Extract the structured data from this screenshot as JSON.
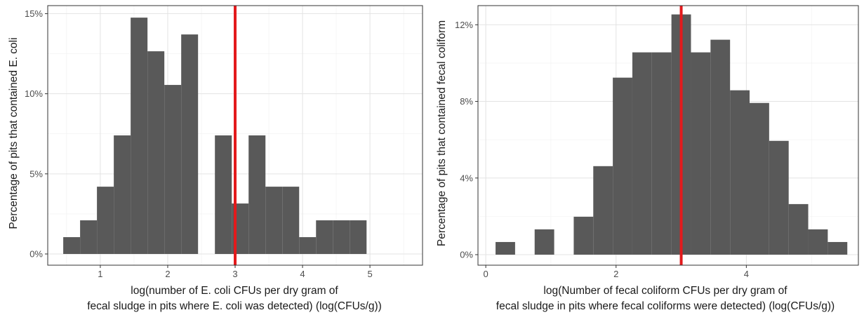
{
  "chart_data": [
    {
      "type": "bar",
      "subtype": "histogram",
      "ylabel": "Percentage of pits that contained E. coli",
      "xlabel_lines": [
        "log(number of E. coli CFUs per dry gram of",
        "fecal sludge in pits where E. coli was detected) (log(CFUs/g))"
      ],
      "bin_width": 0.25,
      "bin_start": 0.45,
      "values": [
        1.05,
        2.1,
        4.2,
        7.4,
        14.75,
        12.65,
        10.55,
        13.7,
        0.0,
        7.4,
        3.15,
        7.4,
        4.2,
        4.2,
        1.05,
        2.1,
        2.1,
        2.1
      ],
      "xlim": [
        0.22,
        5.78
      ],
      "ylim": [
        -0.7,
        15.5
      ],
      "xticks": [
        1,
        2,
        3,
        4,
        5
      ],
      "xtick_labels": [
        "1",
        "2",
        "3",
        "4",
        "5"
      ],
      "yticks": [
        0,
        5,
        10,
        15
      ],
      "ytick_labels": [
        "0%",
        "5%",
        "10%",
        "15%"
      ],
      "reference_line_x": 3.0,
      "reference_line_color": "#e31a1c",
      "bar_color": "#595959",
      "grid": true
    },
    {
      "type": "bar",
      "subtype": "histogram",
      "ylabel": "Percentage of pits that contained fecal coliform",
      "xlabel_lines": [
        "log(Number of fecal coliform CFUs per dry gram of",
        "fecal sludge in pits where fecal coliforms were detected) (log(CFUs/g))"
      ],
      "bin_width": 0.3,
      "bin_start": 0.15,
      "values": [
        0.66,
        0.0,
        1.32,
        0.0,
        1.98,
        4.62,
        9.24,
        10.56,
        10.56,
        12.54,
        10.56,
        11.22,
        8.58,
        7.92,
        5.94,
        2.64,
        1.32,
        0.66
      ],
      "xlim": [
        -0.12,
        5.72
      ],
      "ylim": [
        -0.55,
        13.0
      ],
      "xticks": [
        0,
        2,
        4
      ],
      "xtick_labels": [
        "0",
        "2",
        "4"
      ],
      "yticks": [
        0,
        4,
        8,
        12
      ],
      "ytick_labels": [
        "0%",
        "4%",
        "8%",
        "12%"
      ],
      "reference_line_x": 3.0,
      "reference_line_color": "#e31a1c",
      "bar_color": "#595959",
      "grid": true
    }
  ]
}
